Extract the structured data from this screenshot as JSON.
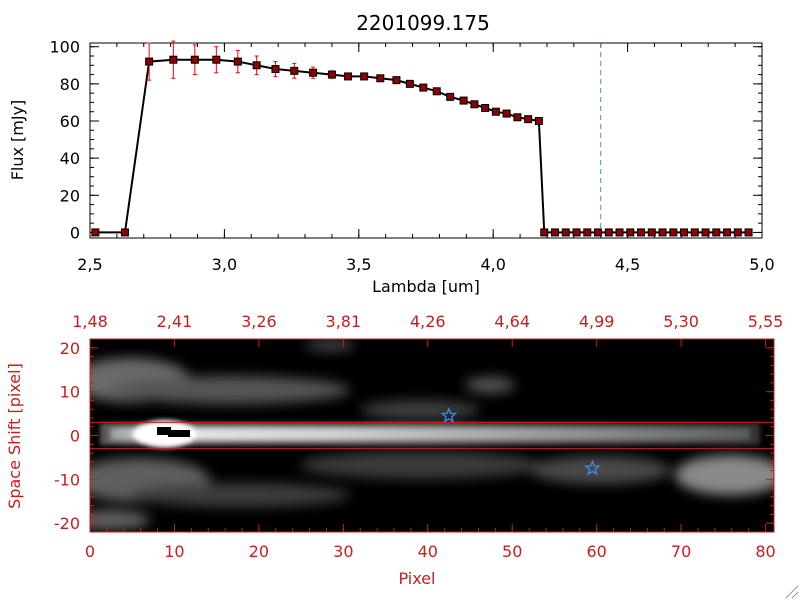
{
  "figure_title": "2201099.175",
  "colors": {
    "data_line": "#000000",
    "marker": "#8b0000",
    "error_bar": "#ff0000",
    "reference_line": "#3a8ee6",
    "image_axes": "#c81e1e",
    "extraction_lines": "#c81e1e",
    "star_marker": "#3a8ee6"
  },
  "chart_data": [
    {
      "type": "line",
      "title": "2201099.175",
      "xlabel": "Lambda [um]",
      "ylabel": "Flux [mJy]",
      "xlim": [
        2.5,
        5.0
      ],
      "ylim": [
        -3,
        102
      ],
      "xticks": [
        "2.5",
        "3.0",
        "3.5",
        "4.0",
        "4.5",
        "5.0"
      ],
      "yticks": [
        "0",
        "20",
        "40",
        "60",
        "80",
        "100"
      ],
      "vertical_reference_line_x": 4.4,
      "series": [
        {
          "name": "flux",
          "x": [
            2.52,
            2.63,
            2.72,
            2.81,
            2.89,
            2.97,
            3.05,
            3.12,
            3.19,
            3.26,
            3.33,
            3.4,
            3.46,
            3.52,
            3.58,
            3.64,
            3.69,
            3.74,
            3.79,
            3.84,
            3.89,
            3.93,
            3.97,
            4.01,
            4.05,
            4.09,
            4.13,
            4.17,
            4.19,
            4.23,
            4.27,
            4.31,
            4.35,
            4.39,
            4.43,
            4.47,
            4.51,
            4.55,
            4.59,
            4.63,
            4.67,
            4.71,
            4.75,
            4.79,
            4.83,
            4.87,
            4.91,
            4.95
          ],
          "y": [
            0,
            0,
            92,
            93,
            93,
            93,
            92,
            90,
            88,
            87,
            86,
            85,
            84,
            84,
            83,
            82,
            80,
            78,
            76,
            73,
            71,
            69,
            67,
            65,
            64,
            62,
            61,
            60,
            0,
            0,
            0,
            0,
            0,
            0,
            0,
            0,
            0,
            0,
            0,
            0,
            0,
            0,
            0,
            0,
            0,
            0,
            0,
            0
          ],
          "yerr": [
            0,
            0,
            10,
            10,
            8,
            7,
            6,
            5,
            4,
            4,
            3,
            2,
            1,
            1,
            1,
            1,
            1,
            1,
            1,
            1,
            1,
            1,
            1,
            1,
            1,
            1,
            1,
            1,
            0,
            0,
            0,
            0,
            0,
            0,
            0,
            0,
            0,
            0,
            0,
            0,
            0,
            0,
            0,
            0,
            0,
            0,
            0,
            0
          ]
        }
      ]
    },
    {
      "type": "heatmap",
      "title": "",
      "xlabel": "Pixel",
      "ylabel": "Space Shift [pixel]",
      "xlim": [
        0,
        81
      ],
      "ylim": [
        -22,
        22
      ],
      "xticks": [
        "0",
        "10",
        "20",
        "30",
        "40",
        "50",
        "60",
        "70",
        "80"
      ],
      "yticks": [
        "-20",
        "-10",
        "0",
        "10",
        "20"
      ],
      "top_axis_ticks": [
        "1.48",
        "2.41",
        "3.26",
        "3.81",
        "4.26",
        "4.64",
        "4.99",
        "5.30",
        "5.55"
      ],
      "extraction_aperture_rows": [
        3,
        -3
      ],
      "star_markers": [
        {
          "pixel": 42.5,
          "shift": 4.5
        },
        {
          "pixel": 59.5,
          "shift": -7.5
        }
      ]
    }
  ]
}
